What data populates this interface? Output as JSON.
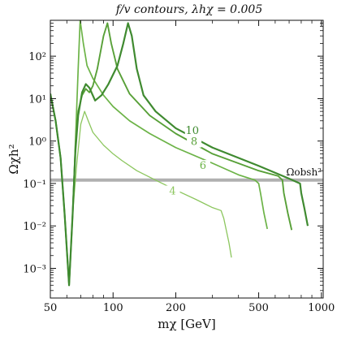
{
  "chart_data": {
    "type": "line",
    "title": "f/v contours,  λhχ = 0.005",
    "xlabel": "mχ [GeV]",
    "ylabel": "Ωχh²",
    "xscale": "log",
    "yscale": "log",
    "xlim": [
      50,
      1020
    ],
    "ylim": [
      0.0002,
      700
    ],
    "xticks": [
      {
        "value": 50,
        "label": "50"
      },
      {
        "value": 100,
        "label": "100"
      },
      {
        "value": 200,
        "label": "200"
      },
      {
        "value": 500,
        "label": "500"
      },
      {
        "value": 1000,
        "label": "1000"
      }
    ],
    "yticks": [
      {
        "value": 0.001,
        "label": "10⁻³"
      },
      {
        "value": 0.01,
        "label": "10⁻²"
      },
      {
        "value": 0.1,
        "label": "10⁻¹"
      },
      {
        "value": 1,
        "label": "10⁰"
      },
      {
        "value": 10,
        "label": "10¹"
      },
      {
        "value": 100,
        "label": "10²"
      }
    ],
    "grid": false,
    "reference_line": {
      "label": "Ωobsh²",
      "y": 0.12,
      "color": "#b0b0b0"
    },
    "series": [
      {
        "name": "4",
        "color": "#8cc65e",
        "label_at": [
          193,
          0.06
        ],
        "points": [
          [
            50,
            13
          ],
          [
            53,
            3
          ],
          [
            56,
            0.4
          ],
          [
            58.5,
            0.02
          ],
          [
            61.5,
            0.0004
          ],
          [
            64,
            0.02
          ],
          [
            67,
            0.3
          ],
          [
            70,
            2.5
          ],
          [
            73,
            5
          ],
          [
            76,
            3
          ],
          [
            80,
            1.6
          ],
          [
            90,
            0.8
          ],
          [
            100,
            0.5
          ],
          [
            110,
            0.35
          ],
          [
            130,
            0.2
          ],
          [
            160,
            0.12
          ],
          [
            200,
            0.07
          ],
          [
            250,
            0.042
          ],
          [
            300,
            0.027
          ],
          [
            330,
            0.023
          ],
          [
            340,
            0.015
          ],
          [
            360,
            0.004
          ],
          [
            370,
            0.0018
          ]
        ]
      },
      {
        "name": "6",
        "color": "#6cb347",
        "label_at": [
          270,
          0.24
        ],
        "points": [
          [
            50,
            13
          ],
          [
            53,
            3
          ],
          [
            56,
            0.4
          ],
          [
            58.5,
            0.02
          ],
          [
            61.5,
            0.0004
          ],
          [
            64,
            0.02
          ],
          [
            66,
            1
          ],
          [
            68,
            50
          ],
          [
            69.5,
            700
          ],
          [
            72,
            200
          ],
          [
            75,
            60
          ],
          [
            80,
            30
          ],
          [
            90,
            12
          ],
          [
            100,
            6.5
          ],
          [
            120,
            3
          ],
          [
            150,
            1.5
          ],
          [
            200,
            0.7
          ],
          [
            300,
            0.3
          ],
          [
            400,
            0.16
          ],
          [
            480,
            0.12
          ],
          [
            500,
            0.1
          ],
          [
            510,
            0.06
          ],
          [
            530,
            0.02
          ],
          [
            550,
            0.0085
          ]
        ]
      },
      {
        "name": "8",
        "color": "#58a038",
        "label_at": [
          245,
          0.88
        ],
        "points": [
          [
            50,
            13
          ],
          [
            53,
            3
          ],
          [
            56,
            0.4
          ],
          [
            58.5,
            0.02
          ],
          [
            61.5,
            0.0004
          ],
          [
            64,
            0.02
          ],
          [
            66,
            0.8
          ],
          [
            68,
            5
          ],
          [
            71,
            12
          ],
          [
            74,
            17
          ],
          [
            77,
            14
          ],
          [
            80,
            20
          ],
          [
            84,
            50
          ],
          [
            90,
            300
          ],
          [
            94,
            600
          ],
          [
            98,
            200
          ],
          [
            105,
            50
          ],
          [
            120,
            13
          ],
          [
            150,
            4
          ],
          [
            200,
            1.5
          ],
          [
            300,
            0.5
          ],
          [
            500,
            0.2
          ],
          [
            620,
            0.15
          ],
          [
            650,
            0.12
          ],
          [
            660,
            0.06
          ],
          [
            690,
            0.02
          ],
          [
            720,
            0.008
          ]
        ]
      },
      {
        "name": "10",
        "color": "#3f8a30",
        "label_at": [
          240,
          1.6
        ],
        "points": [
          [
            50,
            13
          ],
          [
            53,
            3
          ],
          [
            56,
            0.4
          ],
          [
            58.5,
            0.02
          ],
          [
            61.5,
            0.0004
          ],
          [
            64,
            0.02
          ],
          [
            66,
            0.6
          ],
          [
            68,
            4
          ],
          [
            71,
            14
          ],
          [
            74,
            22
          ],
          [
            77,
            18
          ],
          [
            82,
            9
          ],
          [
            88,
            12
          ],
          [
            95,
            22
          ],
          [
            105,
            60
          ],
          [
            112,
            200
          ],
          [
            118,
            600
          ],
          [
            123,
            300
          ],
          [
            130,
            50
          ],
          [
            140,
            12
          ],
          [
            160,
            5
          ],
          [
            200,
            2
          ],
          [
            300,
            0.7
          ],
          [
            500,
            0.26
          ],
          [
            700,
            0.13
          ],
          [
            790,
            0.1
          ],
          [
            800,
            0.06
          ],
          [
            830,
            0.025
          ],
          [
            860,
            0.01
          ]
        ]
      }
    ]
  }
}
